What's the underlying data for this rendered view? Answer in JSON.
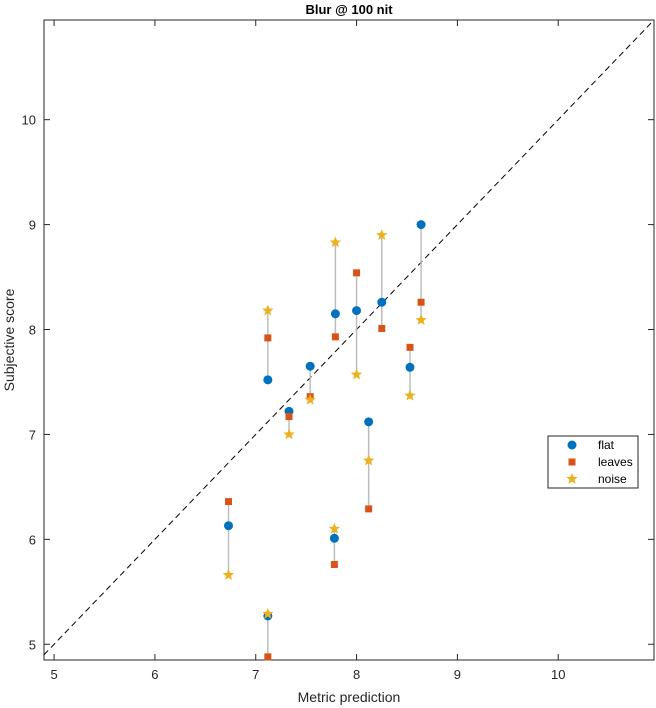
{
  "chart_data": {
    "type": "scatter",
    "title": "Blur @ 100 nit",
    "xlabel": "Metric prediction",
    "ylabel": "Subjective score",
    "xlim": [
      4.9,
      10.95
    ],
    "ylim": [
      4.85,
      10.95
    ],
    "xticks": [
      5,
      6,
      7,
      8,
      9,
      10
    ],
    "yticks": [
      5,
      6,
      7,
      8,
      9,
      10
    ],
    "grid": false,
    "legend_position": "right",
    "identity_line": true,
    "series": [
      {
        "name": "flat",
        "marker": "circle",
        "color": "#0072BD",
        "points": [
          {
            "x": 6.73,
            "y": 6.13
          },
          {
            "x": 7.12,
            "y": 7.52
          },
          {
            "x": 7.12,
            "y": 5.27
          },
          {
            "x": 7.33,
            "y": 7.22
          },
          {
            "x": 7.54,
            "y": 7.65
          },
          {
            "x": 7.79,
            "y": 8.15
          },
          {
            "x": 7.78,
            "y": 6.01
          },
          {
            "x": 8.0,
            "y": 8.18
          },
          {
            "x": 8.12,
            "y": 7.12
          },
          {
            "x": 8.25,
            "y": 8.26
          },
          {
            "x": 8.53,
            "y": 7.64
          },
          {
            "x": 8.64,
            "y": 9.0
          }
        ]
      },
      {
        "name": "leaves",
        "marker": "square",
        "color": "#D95319",
        "points": [
          {
            "x": 6.73,
            "y": 6.36
          },
          {
            "x": 7.12,
            "y": 7.92
          },
          {
            "x": 7.12,
            "y": 4.88
          },
          {
            "x": 7.33,
            "y": 7.17
          },
          {
            "x": 7.54,
            "y": 7.36
          },
          {
            "x": 7.79,
            "y": 7.93
          },
          {
            "x": 7.78,
            "y": 5.76
          },
          {
            "x": 8.0,
            "y": 8.54
          },
          {
            "x": 8.12,
            "y": 6.29
          },
          {
            "x": 8.25,
            "y": 8.01
          },
          {
            "x": 8.53,
            "y": 7.83
          },
          {
            "x": 8.64,
            "y": 8.26
          }
        ]
      },
      {
        "name": "noise",
        "marker": "star",
        "color": "#EDB120",
        "points": [
          {
            "x": 6.73,
            "y": 5.66
          },
          {
            "x": 7.12,
            "y": 8.18
          },
          {
            "x": 7.12,
            "y": 5.29
          },
          {
            "x": 7.33,
            "y": 7.0
          },
          {
            "x": 7.54,
            "y": 7.33
          },
          {
            "x": 7.79,
            "y": 8.83
          },
          {
            "x": 7.78,
            "y": 6.1
          },
          {
            "x": 8.0,
            "y": 7.57
          },
          {
            "x": 8.12,
            "y": 6.75
          },
          {
            "x": 8.25,
            "y": 8.9
          },
          {
            "x": 8.53,
            "y": 7.37
          },
          {
            "x": 8.64,
            "y": 8.09
          }
        ]
      }
    ]
  }
}
